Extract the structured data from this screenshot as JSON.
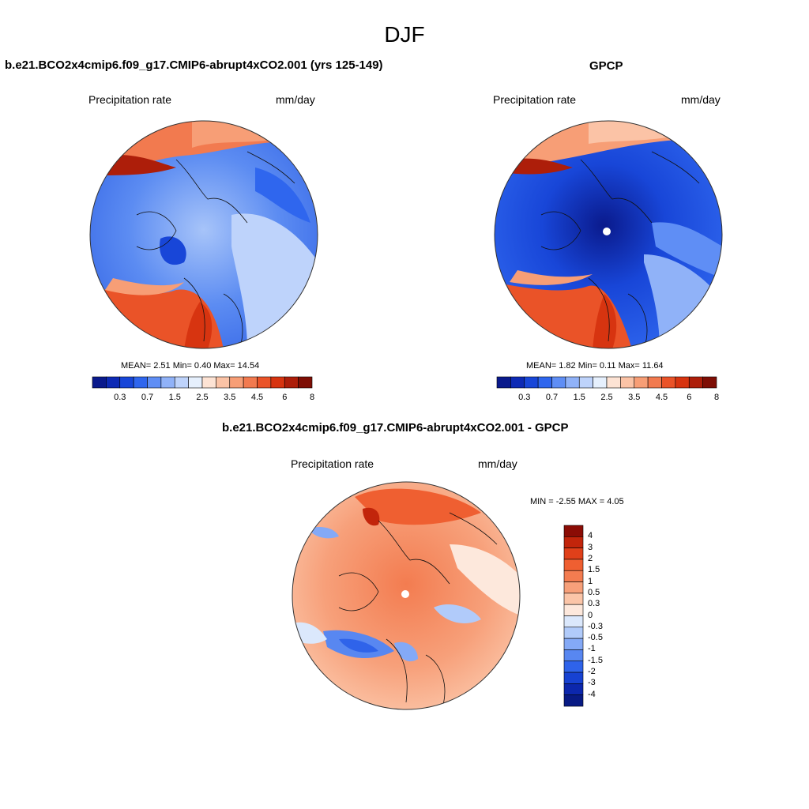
{
  "figure": {
    "title": "DJF",
    "panels": [
      {
        "title": "b.e21.BCO2x4cmip6.f09_g17.CMIP6-abrupt4xCO2.001 (yrs 125-149)",
        "variable": "Precipitation rate",
        "units": "mm/day",
        "stats_text": "MEAN=   2.51  Min=   0.40  Max=  14.54",
        "mean": 2.51,
        "min": 0.4,
        "max": 14.54
      },
      {
        "title": "GPCP",
        "variable": "Precipitation rate",
        "units": "mm/day",
        "stats_text": "MEAN=   1.82  Min=   0.11  Max=  11.64",
        "mean": 1.82,
        "min": 0.11,
        "max": 11.64
      },
      {
        "title": "b.e21.BCO2x4cmip6.f09_g17.CMIP6-abrupt4xCO2.001 - GPCP",
        "variable": "Precipitation rate",
        "units": "mm/day",
        "stats_text": "MIN =  -2.55 MAX =   4.05",
        "min": -2.55,
        "max": 4.05
      }
    ],
    "colorbar_abs": {
      "labels": [
        "0.3",
        "0.7",
        "1.5",
        "2.5",
        "3.5",
        "4.5",
        "6",
        "8"
      ],
      "colors": [
        "#0a1a8c",
        "#0d2ab5",
        "#1846d8",
        "#2f66ee",
        "#5f8ef5",
        "#90b2f8",
        "#bed3fb",
        "#e6f0fd",
        "#fde3d4",
        "#fbc3a6",
        "#f79e76",
        "#f27a4f",
        "#ea5328",
        "#d73410",
        "#ad1e0a",
        "#7e0e05"
      ]
    },
    "colorbar_diff": {
      "labels": [
        "4",
        "3",
        "2",
        "1.5",
        "1",
        "0.5",
        "0.3",
        "0",
        "-0.3",
        "-0.5",
        "-1",
        "-1.5",
        "-2",
        "-3",
        "-4"
      ],
      "colors": [
        "#8b0c05",
        "#c2250b",
        "#e0401a",
        "#ef5f31",
        "#f37c50",
        "#f7a07a",
        "#fbc5a8",
        "#fde8dc",
        "#dbe8fc",
        "#b1cbfa",
        "#84a9f6",
        "#5887f1",
        "#2f63ea",
        "#1742d2",
        "#0c27ad",
        "#081a84"
      ]
    }
  }
}
